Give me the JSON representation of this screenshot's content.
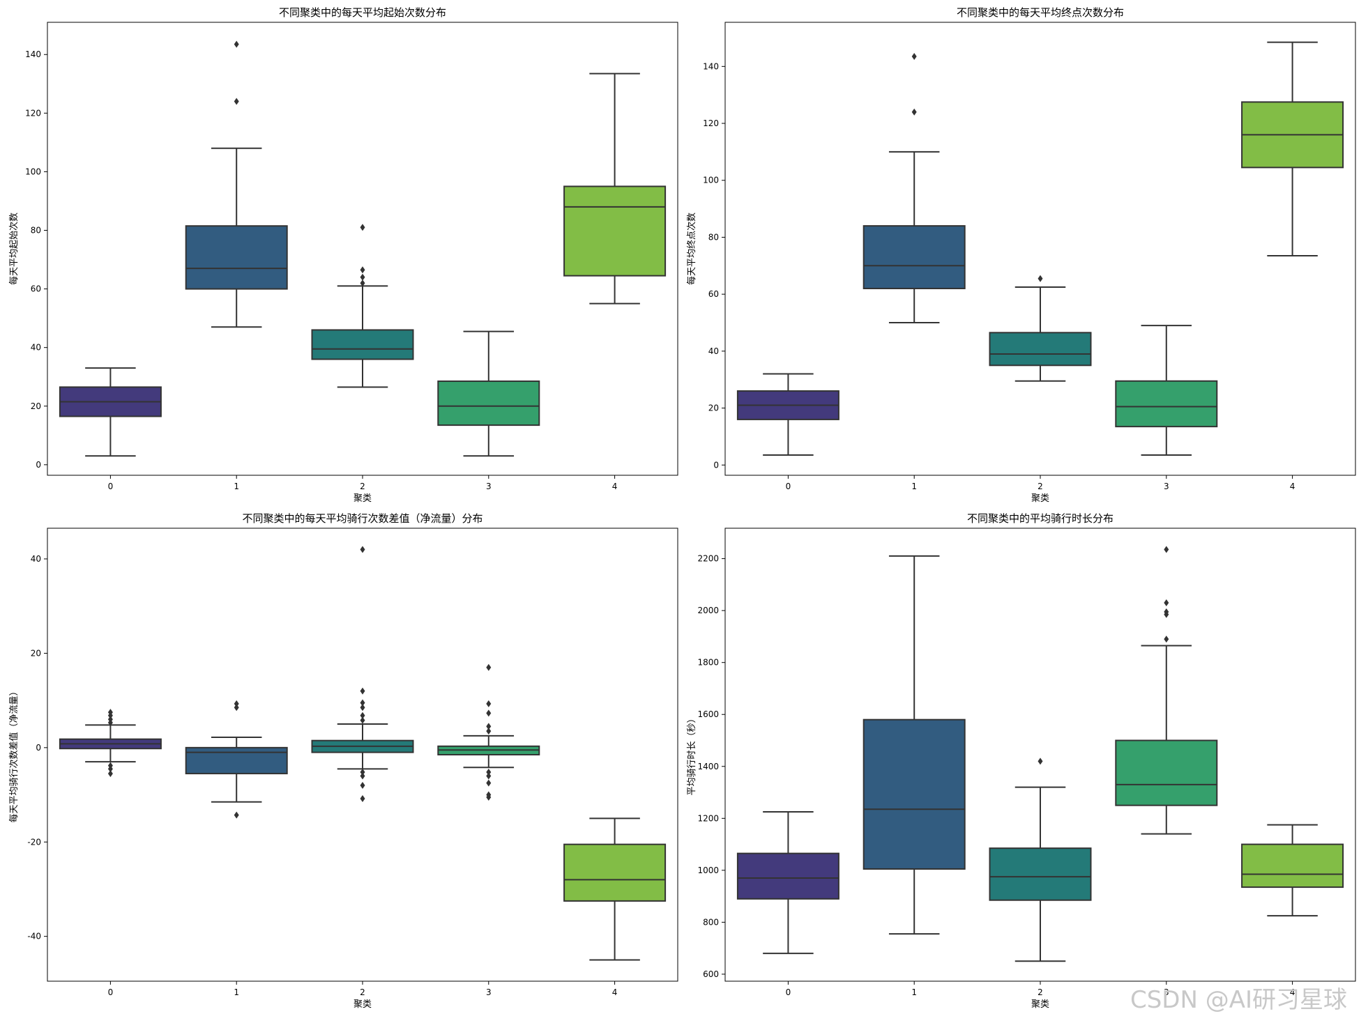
{
  "watermark": "CSDN @AI研习星球",
  "colors": {
    "clusters": [
      "#433a7c",
      "#325c80",
      "#247a78",
      "#35a06c",
      "#82bd46"
    ],
    "line": "#333333",
    "frame": "#000000"
  },
  "chart_data": [
    {
      "type": "box",
      "title": "不同聚类中的每天平均起始次数分布",
      "xlabel": "聚类",
      "ylabel": "每天平均起始次数",
      "categories": [
        "0",
        "1",
        "2",
        "3",
        "4"
      ],
      "yticks": [
        0,
        20,
        40,
        60,
        80,
        100,
        120,
        140
      ],
      "ylim": [
        -3.6,
        151
      ],
      "boxes": [
        {
          "q1": 16.5,
          "median": 21.5,
          "q3": 26.5,
          "whisker_low": 3,
          "whisker_high": 33,
          "outliers": []
        },
        {
          "q1": 60,
          "median": 67,
          "q3": 81.5,
          "whisker_low": 47,
          "whisker_high": 108,
          "outliers": [
            124,
            143.5
          ]
        },
        {
          "q1": 36,
          "median": 39.5,
          "q3": 46,
          "whisker_low": 26.5,
          "whisker_high": 61,
          "outliers": [
            62,
            64,
            66.5,
            81
          ]
        },
        {
          "q1": 13.5,
          "median": 20,
          "q3": 28.5,
          "whisker_low": 3,
          "whisker_high": 45.5,
          "outliers": []
        },
        {
          "q1": 64.5,
          "median": 88,
          "q3": 95,
          "whisker_low": 55,
          "whisker_high": 133.5,
          "outliers": []
        }
      ]
    },
    {
      "type": "box",
      "title": "不同聚类中的每天平均终点次数分布",
      "xlabel": "聚类",
      "ylabel": "每天平均终点次数",
      "categories": [
        "0",
        "1",
        "2",
        "3",
        "4"
      ],
      "yticks": [
        0,
        20,
        40,
        60,
        80,
        100,
        120,
        140
      ],
      "ylim": [
        -3.6,
        155.5
      ],
      "boxes": [
        {
          "q1": 16,
          "median": 21,
          "q3": 26,
          "whisker_low": 3.5,
          "whisker_high": 32,
          "outliers": []
        },
        {
          "q1": 62,
          "median": 70,
          "q3": 84,
          "whisker_low": 50,
          "whisker_high": 110,
          "outliers": [
            124,
            143.5
          ]
        },
        {
          "q1": 35,
          "median": 39,
          "q3": 46.5,
          "whisker_low": 29.5,
          "whisker_high": 62.5,
          "outliers": [
            65.5
          ]
        },
        {
          "q1": 13.5,
          "median": 20.5,
          "q3": 29.5,
          "whisker_low": 3.5,
          "whisker_high": 49,
          "outliers": []
        },
        {
          "q1": 104.5,
          "median": 116,
          "q3": 127.5,
          "whisker_low": 73.5,
          "whisker_high": 148.5,
          "outliers": []
        }
      ]
    },
    {
      "type": "box",
      "title": "不同聚类中的每天平均骑行次数差值（净流量）分布",
      "xlabel": "聚类",
      "ylabel": "每天平均骑行次数差值（净流量）",
      "categories": [
        "0",
        "1",
        "2",
        "3",
        "4"
      ],
      "yticks": [
        -40,
        -20,
        0,
        20,
        40
      ],
      "ylim": [
        -49.5,
        46.5
      ],
      "boxes": [
        {
          "q1": -0.2,
          "median": 0.8,
          "q3": 1.8,
          "whisker_low": -3,
          "whisker_high": 4.8,
          "outliers": [
            5.3,
            6,
            6.8,
            7.5,
            -3.8,
            -4.5,
            -5.5
          ]
        },
        {
          "q1": -5.5,
          "median": -1,
          "q3": 0,
          "whisker_low": -11.5,
          "whisker_high": 2.2,
          "outliers": [
            8.5,
            9.3,
            -14.3
          ]
        },
        {
          "q1": -1,
          "median": 0.3,
          "q3": 1.5,
          "whisker_low": -4.5,
          "whisker_high": 5,
          "outliers": [
            42,
            12,
            9.5,
            8.5,
            6.8,
            5.8,
            -5.2,
            -6,
            -8,
            -10.8
          ]
        },
        {
          "q1": -1.5,
          "median": -0.5,
          "q3": 0.3,
          "whisker_low": -4.2,
          "whisker_high": 2.5,
          "outliers": [
            17,
            9.3,
            7.3,
            4.5,
            3.5,
            -5.2,
            -6,
            -7.5,
            -10,
            -10.5
          ]
        },
        {
          "q1": -32.5,
          "median": -28,
          "q3": -20.5,
          "whisker_low": -45,
          "whisker_high": -15,
          "outliers": []
        }
      ]
    },
    {
      "type": "box",
      "title": "不同聚类中的平均骑行时长分布",
      "xlabel": "聚类",
      "ylabel": "平均骑行时长（秒）",
      "categories": [
        "0",
        "1",
        "2",
        "3",
        "4"
      ],
      "yticks": [
        600,
        800,
        1000,
        1200,
        1400,
        1600,
        1800,
        2000,
        2200
      ],
      "ylim": [
        573,
        2317
      ],
      "boxes": [
        {
          "q1": 890,
          "median": 970,
          "q3": 1065,
          "whisker_low": 680,
          "whisker_high": 1225,
          "outliers": []
        },
        {
          "q1": 1005,
          "median": 1235,
          "q3": 1580,
          "whisker_low": 755,
          "whisker_high": 2210,
          "outliers": []
        },
        {
          "q1": 885,
          "median": 975,
          "q3": 1085,
          "whisker_low": 650,
          "whisker_high": 1320,
          "outliers": [
            1420
          ]
        },
        {
          "q1": 1250,
          "median": 1330,
          "q3": 1500,
          "whisker_low": 1140,
          "whisker_high": 1865,
          "outliers": [
            1890,
            1985,
            1995,
            2030,
            2235
          ]
        },
        {
          "q1": 935,
          "median": 985,
          "q3": 1100,
          "whisker_low": 825,
          "whisker_high": 1175,
          "outliers": []
        }
      ]
    }
  ]
}
